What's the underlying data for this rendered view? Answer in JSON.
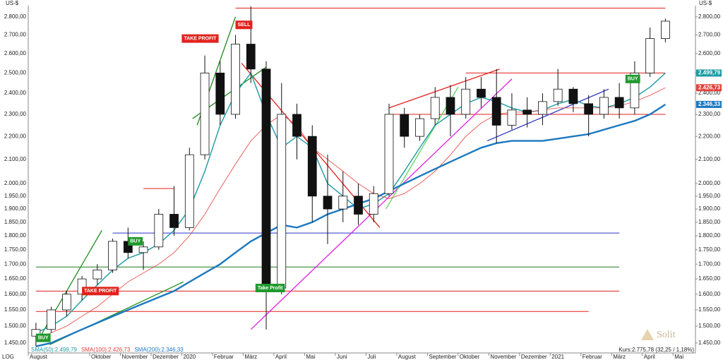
{
  "chart_data": {
    "type": "candlestick",
    "y_unit": "US-$",
    "scale_label": "LOG",
    "log_scale": true,
    "grid": false,
    "status": "Kurs:2.775,78 (32,25 / 1,18%)",
    "logo": "Solit",
    "categories": [
      "August",
      null,
      null,
      null,
      "Oktober",
      null,
      "November",
      null,
      "Dezember",
      null,
      "2020",
      null,
      "Februar",
      null,
      "März",
      null,
      "April",
      null,
      "Mai",
      null,
      "Juni",
      null,
      "Juli",
      null,
      "August",
      null,
      "September",
      null,
      "Oktober",
      null,
      "November",
      null,
      "Dezember",
      null,
      "2021",
      null,
      "Februar",
      null,
      "März",
      null,
      "April",
      null,
      "Mai"
    ],
    "open": [
      1470,
      1490,
      1550,
      1600,
      1650,
      1680,
      1780,
      1740,
      1760,
      1880,
      1830,
      2120,
      2500,
      2300,
      2650,
      2520,
      1620,
      2300,
      2200,
      1950,
      1900,
      1950,
      1880,
      1960,
      2300,
      2200,
      2280,
      2380,
      2300,
      2420,
      2380,
      2250,
      2320,
      2300,
      2360,
      2420,
      2350,
      2300,
      2380,
      2330,
      2500,
      2680,
      null
    ],
    "high": [
      1510,
      1560,
      1610,
      1660,
      1700,
      1790,
      1830,
      1780,
      1900,
      1990,
      2150,
      2590,
      2560,
      2700,
      2860,
      2560,
      2450,
      2350,
      2250,
      2120,
      2050,
      2000,
      1990,
      2350,
      2330,
      2300,
      2430,
      2440,
      2480,
      2480,
      2520,
      2400,
      2380,
      2400,
      2520,
      2430,
      2390,
      2420,
      2450,
      2560,
      2740,
      2790,
      null
    ],
    "low": [
      1440,
      1480,
      1530,
      1580,
      1630,
      1670,
      1720,
      1680,
      1750,
      1800,
      1820,
      2100,
      2250,
      2280,
      2450,
      1490,
      1600,
      2100,
      1850,
      1770,
      1850,
      1840,
      1850,
      1950,
      2150,
      2180,
      2250,
      2200,
      2280,
      2330,
      2170,
      2230,
      2240,
      2250,
      2340,
      2310,
      2200,
      2280,
      2280,
      2300,
      2480,
      2660,
      null
    ],
    "close": [
      1490,
      1550,
      1600,
      1650,
      1680,
      1780,
      1740,
      1760,
      1880,
      1830,
      2120,
      2500,
      2300,
      2650,
      2520,
      1620,
      2300,
      2200,
      1950,
      1900,
      1950,
      1880,
      1960,
      2300,
      2200,
      2280,
      2380,
      2300,
      2420,
      2380,
      2250,
      2320,
      2300,
      2360,
      2420,
      2350,
      2300,
      2380,
      2330,
      2500,
      2680,
      2775.78,
      null
    ],
    "series": [
      {
        "name": "SMA(50):2.499,79",
        "color": "#1b9aa3",
        "end_label": "2.499,79",
        "width": 1.4,
        "values": [
          1480,
          1500,
          1530,
          1580,
          1630,
          1680,
          1720,
          1740,
          1770,
          1820,
          1900,
          2050,
          2250,
          2400,
          2500,
          2300,
          2150,
          2200,
          2150,
          2000,
          1950,
          1900,
          1920,
          1960,
          2050,
          2150,
          2250,
          2300,
          2350,
          2380,
          2360,
          2330,
          2310,
          2320,
          2350,
          2370,
          2340,
          2330,
          2350,
          2380,
          2430,
          2499.79,
          null
        ]
      },
      {
        "name": "SMA(100):2.426,73",
        "color": "#e2403a",
        "end_label": "2.426,73",
        "width": 0.8,
        "values": [
          1460,
          1480,
          1500,
          1530,
          1560,
          1600,
          1640,
          1670,
          1700,
          1740,
          1800,
          1880,
          1980,
          2080,
          2180,
          2250,
          2300,
          2250,
          2150,
          2100,
          2050,
          2000,
          1960,
          1940,
          1960,
          2000,
          2050,
          2120,
          2200,
          2260,
          2300,
          2310,
          2310,
          2320,
          2330,
          2330,
          2330,
          2330,
          2340,
          2360,
          2390,
          2426.73,
          null
        ]
      },
      {
        "name": "SMA(200):2.346,33",
        "color": "#1c78bf",
        "end_label": "2.346,33",
        "width": 2.4,
        "values": [
          1440,
          1450,
          1470,
          1490,
          1510,
          1530,
          1550,
          1570,
          1590,
          1610,
          1640,
          1670,
          1700,
          1740,
          1780,
          1810,
          1840,
          1830,
          1850,
          1880,
          1900,
          1920,
          1940,
          1970,
          2000,
          2030,
          2060,
          2090,
          2120,
          2150,
          2170,
          2180,
          2180,
          2180,
          2190,
          2200,
          2210,
          2230,
          2250,
          2270,
          2300,
          2346.33,
          null
        ]
      }
    ],
    "ylim": [
      1421,
      2864
    ],
    "yticks": [
      {
        "value": 1450,
        "label": "1.450,00"
      },
      {
        "value": 1500,
        "label": "1.500,00"
      },
      {
        "value": 1550,
        "label": "1.550,00"
      },
      {
        "value": 1600,
        "label": "1.600,00"
      },
      {
        "value": 1650,
        "label": "1.650,00"
      },
      {
        "value": 1700,
        "label": "1.700,00"
      },
      {
        "value": 1750,
        "label": "1.750,00"
      },
      {
        "value": 1800,
        "label": "1.800,00"
      },
      {
        "value": 1850,
        "label": "1.850,00"
      },
      {
        "value": 1900,
        "label": "1.900,00"
      },
      {
        "value": 1950,
        "label": "1.950,00"
      },
      {
        "value": 2000,
        "label": "2.000,00"
      },
      {
        "value": 2100,
        "label": "2.100,00"
      },
      {
        "value": 2200,
        "label": "2.200,00"
      },
      {
        "value": 2300,
        "label": "2.300,00"
      },
      {
        "value": 2400,
        "label": "2.400,00"
      },
      {
        "value": 2500,
        "label": "2.500,00"
      },
      {
        "value": 2600,
        "label": "2.600,00"
      },
      {
        "value": 2700,
        "label": "2.700,00"
      },
      {
        "value": 2800,
        "label": "2.800,00"
      }
    ],
    "levels": [
      {
        "value": 2850,
        "from": 13,
        "to": 41,
        "color": "#e2211c"
      },
      {
        "value": 2500,
        "from": 28,
        "to": 41,
        "color": "#e2211c"
      },
      {
        "value": 2300,
        "from": 23,
        "to": 41,
        "color": "#e2211c"
      },
      {
        "value": 1810,
        "from": 5,
        "to": 38,
        "color": "#2b35c8"
      },
      {
        "value": 1690,
        "from": 0,
        "to": 38,
        "color": "#1e7d1e"
      },
      {
        "value": 1610,
        "from": 0,
        "to": 38,
        "color": "#e2211c"
      },
      {
        "value": 1545,
        "from": 0,
        "to": 36,
        "color": "#e2211c"
      },
      {
        "value": 1980,
        "from": 7,
        "to": 9,
        "color": "#e2211c"
      }
    ],
    "trend_lines": [
      {
        "color": "#e020e0",
        "points": [
          [
            14,
            1490
          ],
          [
            31,
            2470
          ]
        ]
      },
      {
        "color": "#e2211c",
        "points": [
          [
            13.4,
            2550
          ],
          [
            22.4,
            1830
          ]
        ]
      },
      {
        "color": "#e2211c",
        "points": [
          [
            23,
            2330
          ],
          [
            30.2,
            2520
          ]
        ]
      },
      {
        "color": "#2b35c8",
        "points": [
          [
            29.4,
            2180
          ],
          [
            37.3,
            2420
          ]
        ]
      },
      {
        "color": "#1e8c1e",
        "points": [
          [
            0.9,
            1445
          ],
          [
            9.6,
            1640
          ]
        ]
      },
      {
        "color": "#1e8c1e",
        "points": [
          [
            0.3,
            1470
          ],
          [
            4.3,
            1820
          ]
        ]
      },
      {
        "color": "#1e8c1e",
        "points": [
          [
            10.2,
            2280
          ],
          [
            15,
            2530
          ]
        ]
      },
      {
        "color": "#1e8c1e",
        "points": [
          [
            10.5,
            2250
          ],
          [
            13,
            2800
          ]
        ]
      },
      {
        "color": "#5cd65c",
        "points": [
          [
            22.8,
            1900
          ],
          [
            27.5,
            2430
          ]
        ]
      }
    ],
    "signals": [
      {
        "label": "BUY",
        "index": 0,
        "price": 1465,
        "color": "#1f9a2e"
      },
      {
        "label": "TAKE PROFIT",
        "index": 3,
        "price": 1610,
        "color": "#e2211c"
      },
      {
        "label": "BUY",
        "index": 6,
        "price": 1780,
        "color": "#1f9a2e"
      },
      {
        "label": "TAKE PROFIT",
        "index": 9.5,
        "price": 2680,
        "color": "#e2211c"
      },
      {
        "label": "SELL",
        "index": 13,
        "price": 2755,
        "color": "#e2211c"
      },
      {
        "label": "Take Profit",
        "index": 14.3,
        "price": 1620,
        "color": "#1f9a2e"
      },
      {
        "label": "BUY",
        "index": 38.4,
        "price": 2470,
        "color": "#1f9a2e"
      }
    ]
  }
}
